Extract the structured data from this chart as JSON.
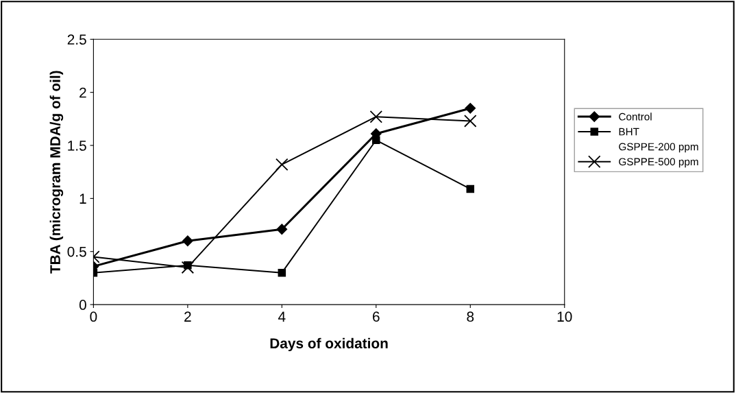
{
  "chart_data": {
    "type": "line",
    "xlabel": "Days of oxidation",
    "ylabel": "TBA (microgram MDA/g of oil)",
    "x": [
      0,
      2,
      4,
      6,
      8
    ],
    "series": [
      {
        "name": "Control",
        "color": "#000000",
        "marker": "diamond",
        "values": [
          0.36,
          0.6,
          0.71,
          1.61,
          1.85
        ]
      },
      {
        "name": "BHT",
        "color": "#000000",
        "marker": "square",
        "values": [
          0.3,
          0.37,
          0.3,
          1.55,
          1.09
        ]
      },
      {
        "name": "GSPPE-200 ppm",
        "marker": "none",
        "values": [
          null,
          null,
          null,
          null,
          null
        ]
      },
      {
        "name": "GSPPE-500 ppm",
        "color": "#000000",
        "marker": "cross",
        "values": [
          0.45,
          0.35,
          1.32,
          1.77,
          1.73
        ]
      }
    ],
    "xlim": [
      0,
      10
    ],
    "xticks": [
      0,
      2,
      4,
      6,
      8,
      10
    ],
    "ylim": [
      0,
      2.5
    ],
    "yticks": [
      0,
      0.5,
      1,
      1.5,
      2,
      2.5
    ],
    "grid": false,
    "legend": "right",
    "line_style": "solid"
  }
}
